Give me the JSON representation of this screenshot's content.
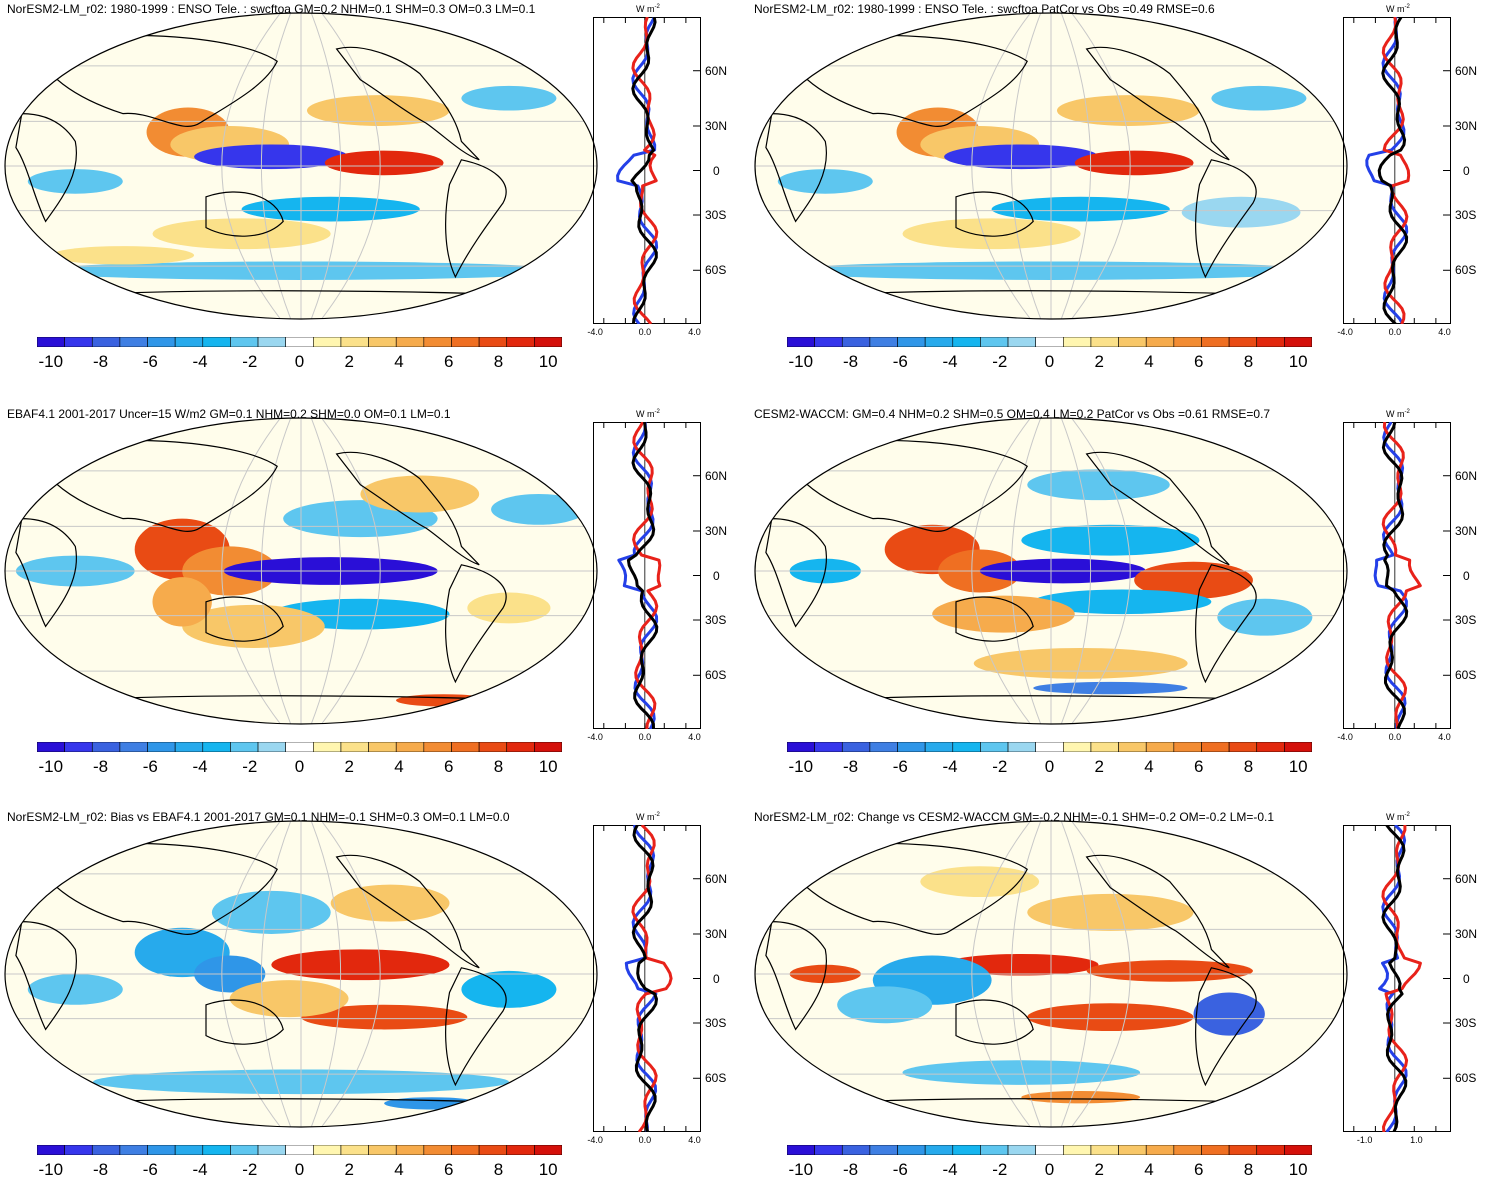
{
  "figure": {
    "units": {
      "base": "W m",
      "exp": "-2"
    },
    "colorbar": {
      "colors": [
        "#2a0fd7",
        "#3636ec",
        "#3a62e0",
        "#3f7fe3",
        "#2f96e8",
        "#27aaec",
        "#15b5ef",
        "#5ec6ef",
        "#9ad7f0",
        "#ffffff",
        "#fff6b0",
        "#fbe18a",
        "#f8c768",
        "#f6ab4c",
        "#f28c33",
        "#ef6f22",
        "#e94b14",
        "#e2280d",
        "#d4100a"
      ],
      "tick_labels": [
        "-10",
        "-8",
        "-6",
        "-4",
        "-2",
        "0",
        "2",
        "4",
        "6",
        "8",
        "10"
      ]
    },
    "lat_labels": [
      "60N",
      "30N",
      "0",
      "30S",
      "60S"
    ]
  },
  "panels": [
    {
      "title": "NorESM2-LM_r02: 1980-1999 : ENSO Tele. : swcftoa GM=0.2 NHM=0.1 SHM=0.3 OM=0.3 LM=0.1",
      "x_tick_labels": [
        "-4.0",
        "0.0",
        "4.0"
      ]
    },
    {
      "title": "NorESM2-LM_r02: 1980-1999 : ENSO Tele. : swcftoa PatCor vs Obs =0.49 RMSE=0.6",
      "x_tick_labels": [
        "-4.0",
        "0.0",
        "4.0"
      ]
    },
    {
      "title": "EBAF4.1 2001-2017 Uncer=15 W/m2 GM=0.1 NHM=0.2 SHM=0.0 OM=0.1 LM=0.1",
      "x_tick_labels": [
        "-4.0",
        "0.0",
        "4.0"
      ]
    },
    {
      "title": "CESM2-WACCM: GM=0.4 NHM=0.2 SHM=0.5 OM=0.4 LM=0.2 PatCor vs Obs =0.61 RMSE=0.7",
      "x_tick_labels": [
        "-4.0",
        "0.0",
        "4.0"
      ]
    },
    {
      "title": "NorESM2-LM_r02: Bias vs EBAF4.1 2001-2017 GM=0.1 NHM=-0.1 SHM=0.3 OM=0.1 LM=0.0",
      "x_tick_labels": [
        "-4.0",
        "0.0",
        "4.0"
      ]
    },
    {
      "title": "NorESM2-LM_r02: Change vs CESM2-WACCM GM=-0.2 NHM=-0.1 SHM=-0.2 OM=-0.2 LM=-0.1",
      "x_tick_labels": [
        "-1.0",
        "1.0"
      ]
    }
  ]
}
